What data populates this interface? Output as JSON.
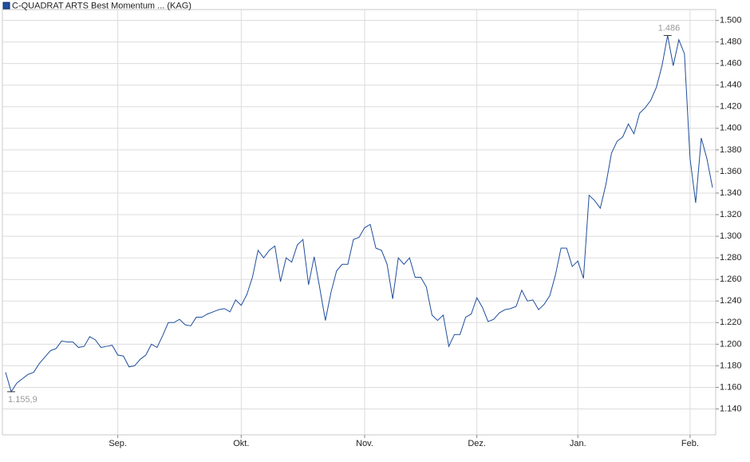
{
  "chart_data": {
    "type": "line",
    "series": [
      {
        "name": "C-QUADRAT ARTS Best Momentum ... (KAG)",
        "color": "#1f4e9c",
        "values": [
          1.174,
          1.156,
          1.164,
          1.168,
          1.172,
          1.174,
          1.182,
          1.188,
          1.194,
          1.196,
          1.203,
          1.202,
          1.202,
          1.197,
          1.198,
          1.207,
          1.204,
          1.197,
          1.198,
          1.199,
          1.19,
          1.189,
          1.179,
          1.18,
          1.186,
          1.19,
          1.2,
          1.197,
          1.208,
          1.22,
          1.22,
          1.223,
          1.218,
          1.217,
          1.225,
          1.225,
          1.228,
          1.23,
          1.232,
          1.233,
          1.23,
          1.241,
          1.236,
          1.246,
          1.262,
          1.287,
          1.28,
          1.287,
          1.291,
          1.258,
          1.28,
          1.276,
          1.292,
          1.297,
          1.255,
          1.281,
          1.252,
          1.222,
          1.248,
          1.268,
          1.274,
          1.274,
          1.297,
          1.299,
          1.308,
          1.311,
          1.289,
          1.287,
          1.274,
          1.242,
          1.28,
          1.274,
          1.28,
          1.262,
          1.262,
          1.253,
          1.227,
          1.222,
          1.227,
          1.198,
          1.209,
          1.209,
          1.225,
          1.228,
          1.243,
          1.234,
          1.221,
          1.223,
          1.229,
          1.232,
          1.233,
          1.235,
          1.25,
          1.24,
          1.241,
          1.232,
          1.237,
          1.245,
          1.264,
          1.289,
          1.289,
          1.272,
          1.277,
          1.261,
          1.338,
          1.333,
          1.326,
          1.348,
          1.377,
          1.388,
          1.392,
          1.404,
          1.395,
          1.414,
          1.419,
          1.426,
          1.438,
          1.458,
          1.486,
          1.458,
          1.482,
          1.469,
          1.372,
          1.331,
          1.391,
          1.372,
          1.345
        ],
        "value_labels": [
          null,
          "1.155,9",
          null,
          null,
          null,
          null,
          null,
          null,
          null,
          null,
          null,
          null,
          null,
          null,
          null,
          null,
          null,
          null,
          null,
          null,
          null,
          null,
          null,
          null,
          null,
          null,
          null,
          null,
          null,
          null,
          null,
          null,
          null,
          null,
          null,
          null,
          null,
          null,
          null,
          null,
          null,
          null,
          null,
          null,
          null,
          null,
          null,
          null,
          null,
          null,
          null,
          null,
          null,
          null,
          null,
          null,
          null,
          null,
          null,
          null,
          null,
          null,
          null,
          null,
          null,
          null,
          null,
          null,
          null,
          null,
          null,
          null,
          null,
          null,
          null,
          null,
          null,
          null,
          null,
          null,
          null,
          null,
          null,
          null,
          null,
          null,
          null,
          null,
          null,
          null,
          null,
          null,
          null,
          null,
          null,
          null,
          null,
          null,
          null,
          null,
          null,
          null,
          null,
          null,
          null,
          null,
          null,
          null,
          null,
          null,
          null,
          null,
          null,
          null,
          null,
          null,
          null,
          null,
          "1.486",
          null,
          null,
          null,
          null,
          null,
          null,
          null,
          null
        ]
      }
    ],
    "categories": [
      null,
      null,
      null,
      null,
      null,
      null,
      null,
      null,
      null,
      null,
      null,
      null,
      null,
      null,
      null,
      null,
      null,
      null,
      null,
      null,
      "Sep.",
      null,
      null,
      null,
      null,
      null,
      null,
      null,
      null,
      null,
      null,
      null,
      null,
      null,
      null,
      null,
      null,
      null,
      null,
      null,
      null,
      null,
      "Okt.",
      null,
      null,
      null,
      null,
      null,
      null,
      null,
      null,
      null,
      null,
      null,
      null,
      null,
      null,
      null,
      null,
      null,
      null,
      null,
      null,
      null,
      "Nov.",
      null,
      null,
      null,
      null,
      null,
      null,
      null,
      null,
      null,
      null,
      null,
      null,
      null,
      null,
      null,
      null,
      null,
      null,
      null,
      "Dez.",
      null,
      null,
      null,
      null,
      null,
      null,
      null,
      null,
      null,
      null,
      null,
      null,
      null,
      null,
      null,
      null,
      null,
      "Jan.",
      null,
      null,
      null,
      null,
      null,
      null,
      null,
      null,
      null,
      null,
      null,
      null,
      null,
      null,
      null,
      null,
      null,
      null,
      null,
      "Feb.",
      null,
      null,
      null,
      null
    ],
    "ylim": [
      1.116,
      1.51
    ],
    "yticks": [
      {
        "value": 1.14,
        "label": "1.140"
      },
      {
        "value": 1.16,
        "label": "1.160"
      },
      {
        "value": 1.18,
        "label": "1.180"
      },
      {
        "value": 1.2,
        "label": "1.200"
      },
      {
        "value": 1.22,
        "label": "1.220"
      },
      {
        "value": 1.24,
        "label": "1.240"
      },
      {
        "value": 1.26,
        "label": "1.260"
      },
      {
        "value": 1.28,
        "label": "1.280"
      },
      {
        "value": 1.3,
        "label": "1.300"
      },
      {
        "value": 1.32,
        "label": "1.320"
      },
      {
        "value": 1.34,
        "label": "1.340"
      },
      {
        "value": 1.36,
        "label": "1.360"
      },
      {
        "value": 1.38,
        "label": "1.380"
      },
      {
        "value": 1.4,
        "label": "1.400"
      },
      {
        "value": 1.42,
        "label": "1.420"
      },
      {
        "value": 1.44,
        "label": "1.440"
      },
      {
        "value": 1.46,
        "label": "1.460"
      },
      {
        "value": 1.48,
        "label": "1.480"
      },
      {
        "value": 1.5,
        "label": "1.500"
      }
    ],
    "grid": true
  }
}
